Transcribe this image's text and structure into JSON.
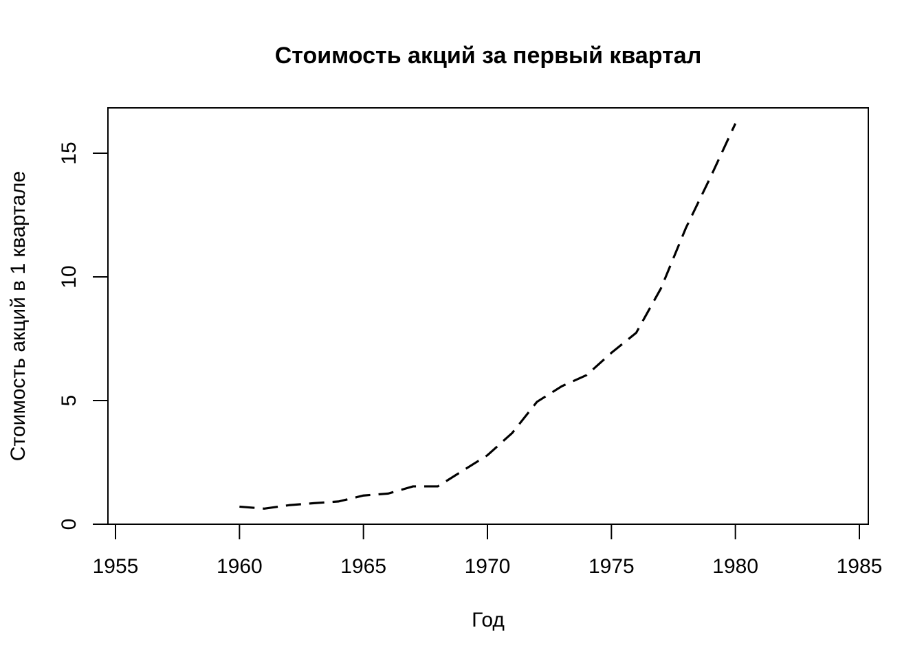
{
  "chart_data": {
    "type": "line",
    "title": "Стоимость акций за первый квартал",
    "xlabel": "Год",
    "ylabel": "Стоимость акций в 1 квартале",
    "xlim": [
      1955,
      1985
    ],
    "ylim": [
      0,
      16.8
    ],
    "x_ticks": [
      1955,
      1960,
      1965,
      1970,
      1975,
      1980,
      1985
    ],
    "y_ticks": [
      0,
      5,
      10,
      15
    ],
    "line_style": "dashed",
    "line_color": "#000000",
    "grid": false,
    "series": [
      {
        "x": [
          1960,
          1961,
          1962,
          1963,
          1964,
          1965,
          1966,
          1967,
          1968,
          1969,
          1970,
          1971,
          1972,
          1973,
          1974,
          1975,
          1976,
          1977,
          1978,
          1979,
          1980
        ],
        "values": [
          0.71,
          0.63,
          0.77,
          0.85,
          0.92,
          1.16,
          1.24,
          1.53,
          1.53,
          2.16,
          2.79,
          3.69,
          4.95,
          5.58,
          6.03,
          6.93,
          7.74,
          9.54,
          11.97,
          14.04,
          16.2
        ]
      }
    ]
  }
}
